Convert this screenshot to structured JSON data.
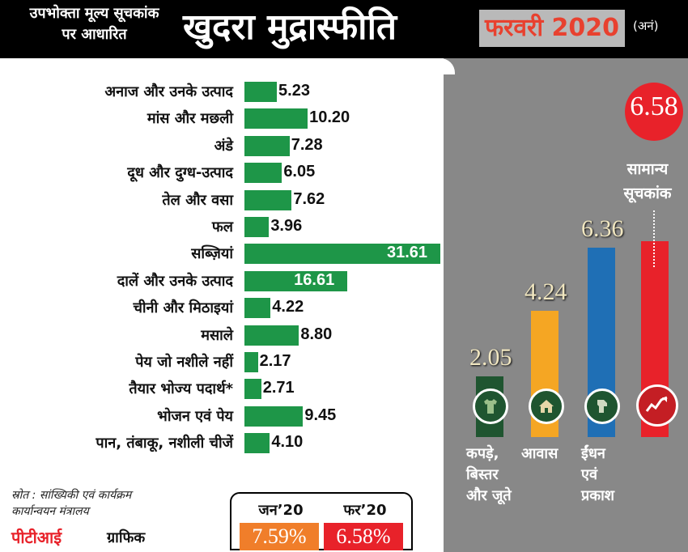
{
  "header": {
    "subtitle_line1": "उपभोक्ता मूल्य सूचकांक",
    "subtitle_line2": "पर आधारित",
    "title": "खुदरा मुद्रास्फीति",
    "month": "फरवरी 2020",
    "note": "(अनं)"
  },
  "colors": {
    "bar_green": "#1e9648",
    "clothing": "#1f5530",
    "housing": "#f5a623",
    "fuel": "#1f6fb5",
    "general": "#e8222a",
    "jan": "#f07e2a",
    "feb": "#e8222a"
  },
  "chart_data": [
    {
      "type": "bar",
      "orientation": "horizontal",
      "categories": [
        "अनाज और उनके उत्पाद",
        "मांस और मछली",
        "अंडे",
        "दूध और दुग्ध-उत्पाद",
        "तेल और वसा",
        "फल",
        "सब्ज़ियां",
        "दालें और उनके उत्पाद",
        "चीनी और मिठाइयां",
        "मसाले",
        "पेय जो नशीले नहीं",
        "तैयार भोज्य पदार्थ*",
        "भोजन एवं पेय",
        "पान, तंबाकू, नशीली चीजें"
      ],
      "values": [
        "5.23",
        "10.20",
        "7.28",
        "6.05",
        "7.62",
        "3.96",
        "31.61",
        "16.61",
        "4.22",
        "8.80",
        "2.17",
        "2.71",
        "9.45",
        "4.10"
      ],
      "xlim": [
        0,
        31.61
      ]
    },
    {
      "type": "bar",
      "orientation": "vertical",
      "categories": [
        "कपड़े, बिस्तर और जूते",
        "आवास",
        "ईंधन एवं प्रकाश",
        "सामान्य सूचकांक"
      ],
      "values": [
        "2.05",
        "4.24",
        "6.36",
        "6.58"
      ],
      "ylim": [
        0,
        6.58
      ]
    }
  ],
  "groups": {
    "clothing": {
      "line1": "कपड़े,",
      "line2": "बिस्तर",
      "line3": "और जूते",
      "icon": "shirt-icon"
    },
    "housing": {
      "line1": "आवास",
      "icon": "house-icon"
    },
    "fuel": {
      "line1": "ईंधन",
      "line2": "एवं",
      "line3": "प्रकाश",
      "icon": "fuel-nozzle-icon"
    },
    "general": {
      "line1": "सामान्य",
      "line2": "सूचकांक",
      "icon": "trend-chart-icon"
    }
  },
  "comparison": {
    "jan_label": "जन’20",
    "jan_value": "7.59%",
    "feb_label": "फर’20",
    "feb_value": "6.58%"
  },
  "footer": {
    "source_line1": "स्रोत : सांख्यिकी एवं कार्यक्रम",
    "source_line2": "कार्यान्वयन मंत्रालय",
    "credit_brand": "पीटीआई",
    "credit_suffix": "ग्राफिक"
  }
}
